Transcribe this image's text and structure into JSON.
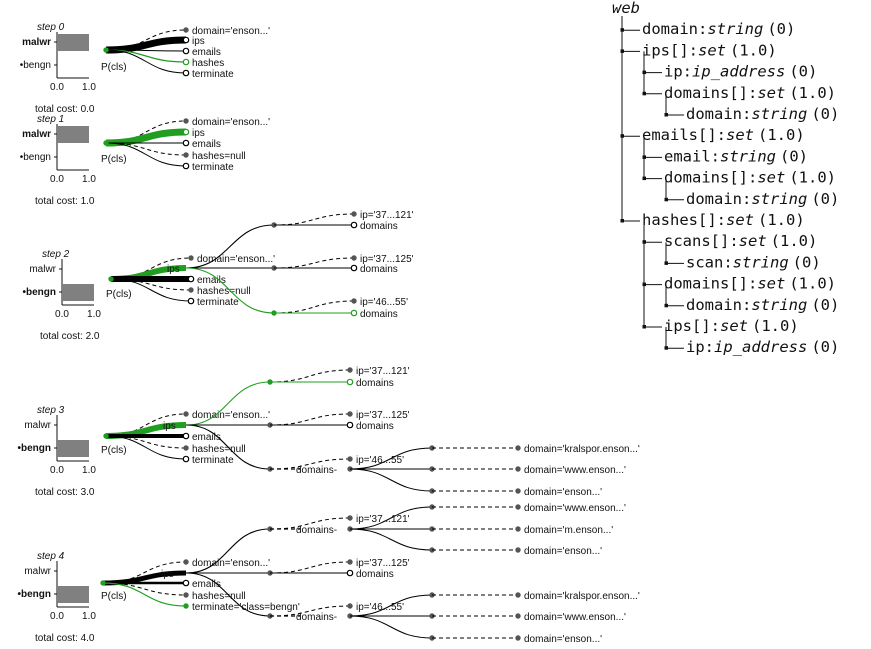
{
  "schema": {
    "root": "web",
    "rows": [
      {
        "depth": 1,
        "name": "domain",
        "sep": ":",
        "type": "string",
        "prob": "(0)"
      },
      {
        "depth": 1,
        "name": "ips[]",
        "sep": ":",
        "type": "set",
        "prob": "(1.0)"
      },
      {
        "depth": 2,
        "name": "ip",
        "sep": ":",
        "type": "ip_address",
        "prob": "(0)"
      },
      {
        "depth": 2,
        "name": "domains[]",
        "sep": ":",
        "type": "set",
        "prob": "(1.0)"
      },
      {
        "depth": 3,
        "name": "domain",
        "sep": ":",
        "type": "string",
        "prob": "(0)"
      },
      {
        "depth": 1,
        "name": "emails[]",
        "sep": ":",
        "type": "set",
        "prob": "(1.0)"
      },
      {
        "depth": 2,
        "name": "email",
        "sep": ":",
        "type": "string",
        "prob": "(0)"
      },
      {
        "depth": 2,
        "name": "domains[]",
        "sep": ":",
        "type": "set",
        "prob": "(1.0)"
      },
      {
        "depth": 3,
        "name": "domain",
        "sep": ":",
        "type": "string",
        "prob": "(0)"
      },
      {
        "depth": 1,
        "name": "hashes[]",
        "sep": ":",
        "type": "set",
        "prob": "(1.0)"
      },
      {
        "depth": 2,
        "name": "scans[]",
        "sep": ":",
        "type": "set",
        "prob": "(1.0)"
      },
      {
        "depth": 3,
        "name": "scan",
        "sep": ":",
        "type": "string",
        "prob": "(0)"
      },
      {
        "depth": 2,
        "name": "domains[]",
        "sep": ":",
        "type": "set",
        "prob": "(1.0)"
      },
      {
        "depth": 3,
        "name": "domain",
        "sep": ":",
        "type": "string",
        "prob": "(0)"
      },
      {
        "depth": 2,
        "name": "ips[]",
        "sep": ":",
        "type": "set",
        "prob": "(1.0)"
      },
      {
        "depth": 3,
        "name": "ip",
        "sep": ":",
        "type": "ip_address",
        "prob": "(0)"
      }
    ]
  },
  "common": {
    "class_malwr": "malwr",
    "class_bengn": "bengn",
    "axis_min": "0.0",
    "axis_max": "1.0",
    "pcls": "P(cls)"
  },
  "steps": [
    {
      "title": "step 0",
      "cost": "total cost: 0.0",
      "bold_class": "malwr",
      "p_malwr": 1.0,
      "p_bengn": 0.0,
      "top_labels": [
        "domain='enson...'",
        "ips",
        "emails",
        "hashes",
        "terminate"
      ]
    },
    {
      "title": "step 1",
      "cost": "total cost: 1.0",
      "bold_class": "malwr",
      "p_malwr": 1.0,
      "p_bengn": 0.0,
      "top_labels": [
        "domain='enson...'",
        "ips",
        "emails",
        "hashes=null",
        "terminate"
      ]
    },
    {
      "title": "step 2",
      "cost": "total cost: 2.0",
      "bold_class": "bengn",
      "p_malwr": 0.0,
      "p_bengn": 1.0,
      "top_labels": [
        "domain='enson...'",
        "ips",
        "emails",
        "hashes=null",
        "terminate"
      ],
      "ip_labels": [
        "ip='37...121'",
        "domains",
        "ip='37...125'",
        "domains",
        "ip='46...55'",
        "domains"
      ]
    },
    {
      "title": "step 3",
      "cost": "total cost: 3.0",
      "bold_class": "bengn",
      "p_malwr": 0.0,
      "p_bengn": 1.0,
      "top_labels": [
        "domain='enson...'",
        "ips",
        "emails",
        "hashes=null",
        "terminate"
      ],
      "ip_labels": [
        "ip='37...121'",
        "domains",
        "ip='37...125'",
        "domains",
        "ip='46...55'",
        "domains-"
      ],
      "sub_labels": [
        "domain='kralspor.enson...'",
        "domain='www.enson...'",
        "domain='enson...'"
      ]
    },
    {
      "title": "step 4",
      "cost": "total cost: 4.0",
      "bold_class": "bengn",
      "p_malwr": 0.0,
      "p_bengn": 1.0,
      "top_labels": [
        "domain='enson...'",
        "ips",
        "emails",
        "hashes=null",
        "terminate='class=bengn'"
      ],
      "ip_labels": [
        "ip='37...121'",
        "domains-",
        "ip='37...125'",
        "domains",
        "ip='46...55'",
        "domains-"
      ],
      "sub_labels_a": [
        "domain='www.enson...'",
        "domain='m.enson...'",
        "domain='enson...'"
      ],
      "sub_labels_b": [
        "domain='kralspor.enson...'",
        "domain='www.enson...'",
        "domain='enson...'"
      ]
    }
  ],
  "colors": {
    "green": "#1f9e1f",
    "black": "#000000",
    "grey": "#555555",
    "bar": "#808080"
  }
}
